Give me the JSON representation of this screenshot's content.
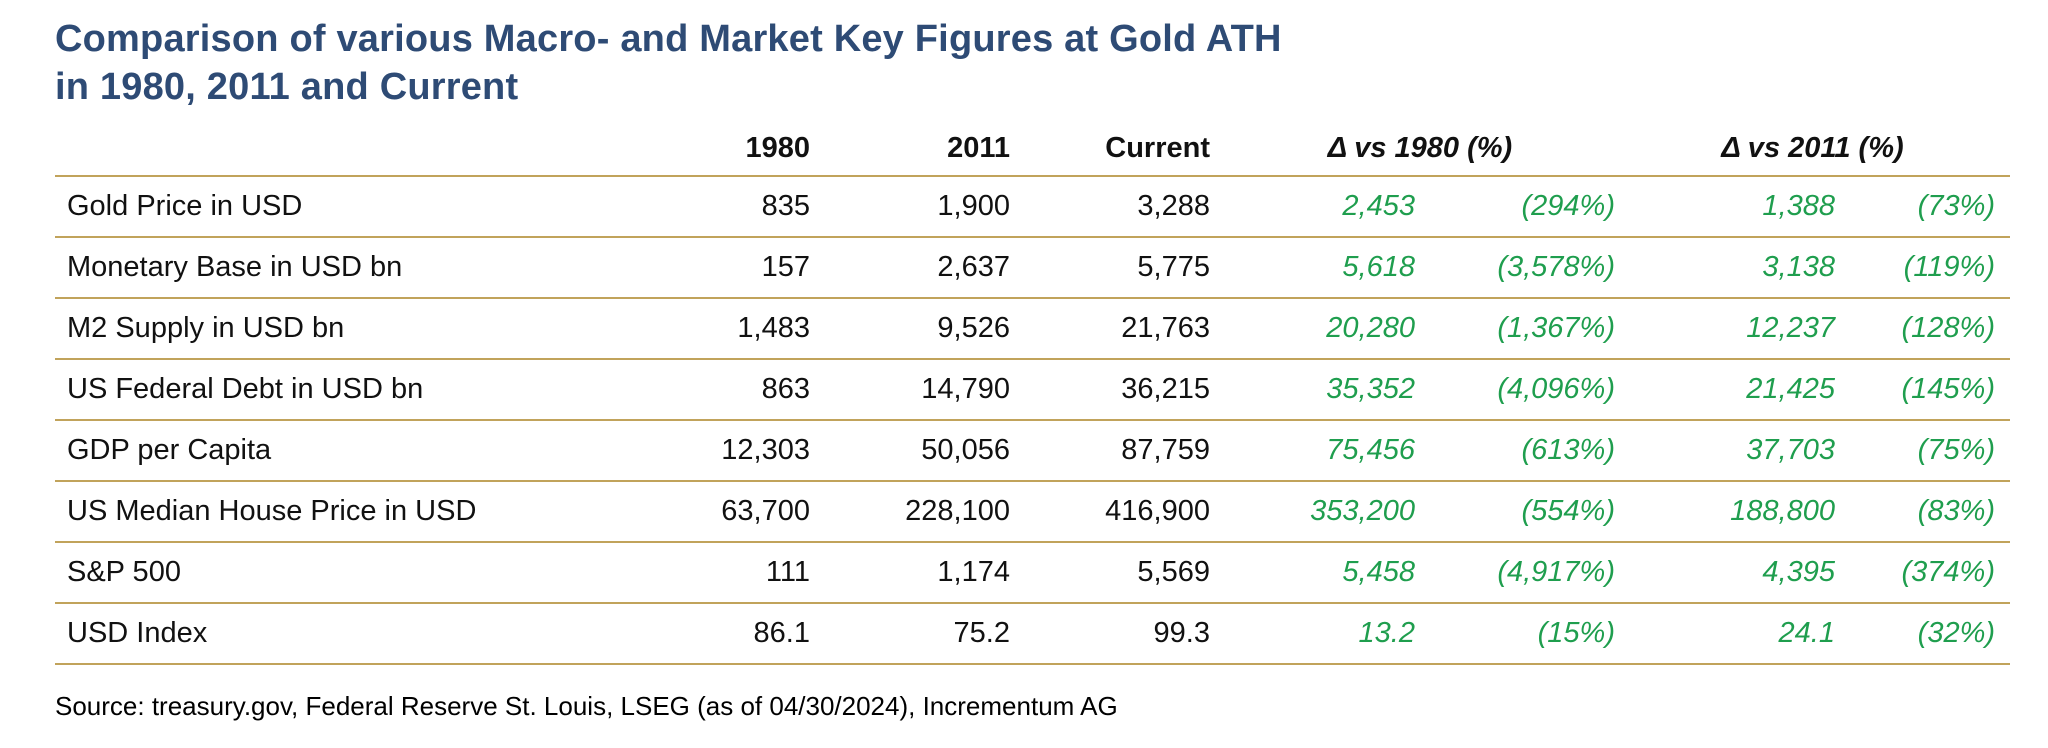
{
  "title": {
    "line1": "Comparison of various Macro- and Market Key Figures at Gold ATH",
    "line2": "in 1980, 2011 and Current"
  },
  "table": {
    "headers": {
      "col_1980": "1980",
      "col_2011": "2011",
      "col_current": "Current",
      "col_delta_1980": "Δ vs 1980 (%)",
      "col_delta_2011": "Δ vs 2011 (%)"
    },
    "rows": [
      {
        "label": "Gold Price in USD",
        "v1980": "835",
        "v2011": "1,900",
        "current": "3,288",
        "d1980_abs": "2,453",
        "d1980_pct": "(294%)",
        "d2011_abs": "1,388",
        "d2011_pct": "(73%)"
      },
      {
        "label": "Monetary Base in USD bn",
        "v1980": "157",
        "v2011": "2,637",
        "current": "5,775",
        "d1980_abs": "5,618",
        "d1980_pct": "(3,578%)",
        "d2011_abs": "3,138",
        "d2011_pct": "(119%)"
      },
      {
        "label": "M2 Supply in USD bn",
        "v1980": "1,483",
        "v2011": "9,526",
        "current": "21,763",
        "d1980_abs": "20,280",
        "d1980_pct": "(1,367%)",
        "d2011_abs": "12,237",
        "d2011_pct": "(128%)"
      },
      {
        "label": "US Federal Debt in USD bn",
        "v1980": "863",
        "v2011": "14,790",
        "current": "36,215",
        "d1980_abs": "35,352",
        "d1980_pct": "(4,096%)",
        "d2011_abs": "21,425",
        "d2011_pct": "(145%)"
      },
      {
        "label": "GDP per Capita",
        "v1980": "12,303",
        "v2011": "50,056",
        "current": "87,759",
        "d1980_abs": "75,456",
        "d1980_pct": "(613%)",
        "d2011_abs": "37,703",
        "d2011_pct": "(75%)"
      },
      {
        "label": "US Median House Price in USD",
        "v1980": "63,700",
        "v2011": "228,100",
        "current": "416,900",
        "d1980_abs": "353,200",
        "d1980_pct": "(554%)",
        "d2011_abs": "188,800",
        "d2011_pct": "(83%)"
      },
      {
        "label": "S&P 500",
        "v1980": "111",
        "v2011": "1,174",
        "current": "5,569",
        "d1980_abs": "5,458",
        "d1980_pct": "(4,917%)",
        "d2011_abs": "4,395",
        "d2011_pct": "(374%)"
      },
      {
        "label": "USD Index",
        "v1980": "86.1",
        "v2011": "75.2",
        "current": "99.3",
        "d1980_abs": "13.2",
        "d1980_pct": "(15%)",
        "d2011_abs": "24.1",
        "d2011_pct": "(32%)"
      }
    ]
  },
  "source": {
    "text": "Source: treasury.gov, Federal Reserve St. Louis, LSEG (as of 04/30/2024), Incrementum AG"
  },
  "colors": {
    "title": "#2E4B75",
    "green": "#1F9E4E",
    "border": "#C1A35B"
  },
  "chart_data": {
    "type": "table",
    "title": "Comparison of various Macro- and Market Key Figures at Gold ATH in 1980, 2011 and Current",
    "columns": [
      "1980",
      "2011",
      "Current",
      "Δ vs 1980 abs",
      "Δ vs 1980 %",
      "Δ vs 2011 abs",
      "Δ vs 2011 %"
    ],
    "row_labels": [
      "Gold Price in USD",
      "Monetary Base in USD bn",
      "M2 Supply in USD bn",
      "US Federal Debt in USD bn",
      "GDP per Capita",
      "US Median House Price in USD",
      "S&P 500",
      "USD Index"
    ],
    "values": [
      [
        835,
        1900,
        3288,
        2453,
        294,
        1388,
        73
      ],
      [
        157,
        2637,
        5775,
        5618,
        3578,
        3138,
        119
      ],
      [
        1483,
        9526,
        21763,
        20280,
        1367,
        12237,
        128
      ],
      [
        863,
        14790,
        36215,
        35352,
        4096,
        21425,
        145
      ],
      [
        12303,
        50056,
        87759,
        75456,
        613,
        37703,
        75
      ],
      [
        63700,
        228100,
        416900,
        353200,
        554,
        188800,
        83
      ],
      [
        111,
        1174,
        5569,
        5458,
        4917,
        4395,
        374
      ],
      [
        86.1,
        75.2,
        99.3,
        13.2,
        15,
        24.1,
        32
      ]
    ],
    "notes": "Green italic columns are absolute and percentage changes vs 1980 and vs 2011; source: treasury.gov, Federal Reserve St. Louis, LSEG (as of 04/30/2024), Incrementum AG"
  }
}
